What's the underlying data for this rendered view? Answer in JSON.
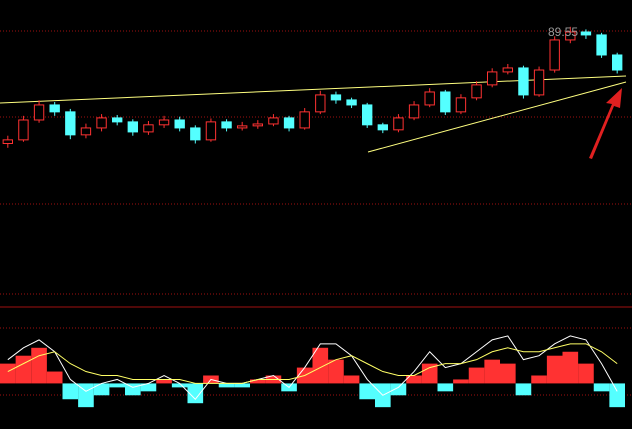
{
  "chart_data": [
    {
      "type": "candlestick",
      "annotation": "89.55",
      "up_color": "#ff3232",
      "down_color": "#54ffff",
      "ylim": [
        79.3,
        91.1
      ],
      "open": [
        82.8,
        83.01,
        84.16,
        85.03,
        84.63,
        83.3,
        83.7,
        84.28,
        84.05,
        83.47,
        83.88,
        84.16,
        83.7,
        83.01,
        84.05,
        83.7,
        83.82,
        83.93,
        84.28,
        83.7,
        84.63,
        85.61,
        85.32,
        85.03,
        83.88,
        83.59,
        84.28,
        85.03,
        85.78,
        84.63,
        85.44,
        86.19,
        86.94,
        87.17,
        85.61,
        87.05,
        88.79,
        89.25,
        89.08,
        87.92
      ],
      "high": [
        83.25,
        84.4,
        85.3,
        85.2,
        84.8,
        83.95,
        84.5,
        84.45,
        84.2,
        84.1,
        84.4,
        84.35,
        83.85,
        84.25,
        84.2,
        84.05,
        84.15,
        84.5,
        84.4,
        84.85,
        85.85,
        85.8,
        85.45,
        85.15,
        84.0,
        84.5,
        85.25,
        86.0,
        85.9,
        85.65,
        86.4,
        87.15,
        87.4,
        87.3,
        87.25,
        89.0,
        89.55,
        89.4,
        89.2,
        88.05
      ],
      "low": [
        82.55,
        82.9,
        84.0,
        84.4,
        83.05,
        83.1,
        83.5,
        83.85,
        83.25,
        83.3,
        83.7,
        83.5,
        82.8,
        82.9,
        83.5,
        83.55,
        83.65,
        83.8,
        83.5,
        83.6,
        84.5,
        85.1,
        84.85,
        83.7,
        83.4,
        83.45,
        84.15,
        84.9,
        84.45,
        84.5,
        85.3,
        86.05,
        86.8,
        85.4,
        85.5,
        86.9,
        88.6,
        88.85,
        87.75,
        86.85
      ],
      "close": [
        83.01,
        84.16,
        85.03,
        84.63,
        83.3,
        83.7,
        84.28,
        84.05,
        83.47,
        83.88,
        84.16,
        83.7,
        83.01,
        84.05,
        83.7,
        83.82,
        83.93,
        84.28,
        83.7,
        84.63,
        85.61,
        85.32,
        85.03,
        83.88,
        83.59,
        84.28,
        85.03,
        85.78,
        84.63,
        85.44,
        86.19,
        86.94,
        87.17,
        85.61,
        87.05,
        88.79,
        89.25,
        89.08,
        87.92,
        87.05
      ]
    },
    {
      "type": "macd",
      "ylim": [
        -1.0,
        1.4
      ],
      "up_color": "#ff3232",
      "down_color": "#54ffff",
      "dif_color": "#ffffff",
      "dea_color": "#ffff66",
      "histogram": [
        0.5,
        0.7,
        0.9,
        0.3,
        -0.4,
        -0.6,
        -0.3,
        -0.1,
        -0.3,
        -0.2,
        0.1,
        -0.1,
        -0.5,
        0.2,
        -0.1,
        -0.1,
        0.1,
        0.2,
        -0.2,
        0.4,
        0.9,
        0.6,
        0.2,
        -0.4,
        -0.6,
        -0.3,
        0.2,
        0.5,
        -0.2,
        0.1,
        0.4,
        0.6,
        0.5,
        -0.3,
        0.2,
        0.7,
        0.8,
        0.5,
        -0.2,
        -0.6
      ],
      "dif": [
        0.6,
        0.9,
        1.1,
        0.8,
        0.1,
        -0.2,
        0.0,
        0.1,
        -0.1,
        0.0,
        0.2,
        0.0,
        -0.4,
        0.1,
        0.0,
        0.0,
        0.1,
        0.2,
        -0.1,
        0.4,
        1.0,
        1.0,
        0.7,
        0.1,
        -0.3,
        -0.1,
        0.3,
        0.8,
        0.4,
        0.5,
        0.8,
        1.1,
        1.2,
        0.6,
        0.7,
        1.0,
        1.2,
        1.1,
        0.5,
        -0.2
      ],
      "dea": [
        0.3,
        0.5,
        0.7,
        0.8,
        0.5,
        0.3,
        0.2,
        0.2,
        0.1,
        0.1,
        0.1,
        0.1,
        0.0,
        0.0,
        0.0,
        0.0,
        0.1,
        0.1,
        0.1,
        0.2,
        0.4,
        0.6,
        0.7,
        0.5,
        0.3,
        0.2,
        0.2,
        0.4,
        0.5,
        0.5,
        0.6,
        0.8,
        0.9,
        0.8,
        0.8,
        0.9,
        1.0,
        1.0,
        0.8,
        0.5
      ]
    }
  ]
}
